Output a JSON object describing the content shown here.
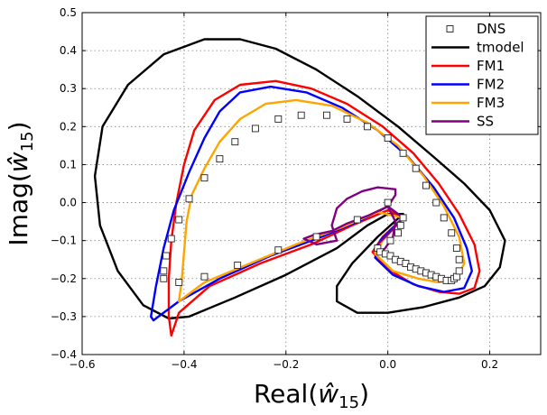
{
  "chart_data": {
    "type": "line",
    "xlabel_main": "Real(",
    "xlabel_symbol": "ŵ",
    "xlabel_sub": "15",
    "xlabel_close": ")",
    "ylabel_main": "Imag(",
    "ylabel_symbol": "ŵ",
    "ylabel_sub": "15",
    "ylabel_close": ")",
    "xlim": [
      -0.6,
      0.3
    ],
    "ylim": [
      -0.4,
      0.5
    ],
    "xticks": [
      -0.6,
      -0.4,
      -0.2,
      0.0,
      0.2
    ],
    "xtick_labels": [
      "−0.6",
      "−0.4",
      "−0.2",
      "0.0",
      "0.2"
    ],
    "yticks": [
      -0.4,
      -0.3,
      -0.2,
      -0.1,
      0.0,
      0.1,
      0.2,
      0.3,
      0.4,
      0.5
    ],
    "ytick_labels": [
      "−0.4",
      "−0.3",
      "−0.2",
      "−0.1",
      "0.0",
      "0.1",
      "0.2",
      "0.3",
      "0.4",
      "0.5"
    ],
    "grid": true,
    "legend_position": "top-right",
    "series": [
      {
        "name": "DNS",
        "kind": "markers",
        "color": "#222222",
        "points": [
          [
            0.03,
            -0.04
          ],
          [
            0.025,
            -0.06
          ],
          [
            0.02,
            -0.08
          ],
          [
            0.005,
            -0.1
          ],
          [
            -0.02,
            -0.12
          ],
          [
            -0.015,
            -0.13
          ],
          [
            -0.005,
            -0.135
          ],
          [
            0.005,
            -0.14
          ],
          [
            0.015,
            -0.15
          ],
          [
            0.025,
            -0.155
          ],
          [
            0.035,
            -0.16
          ],
          [
            0.045,
            -0.17
          ],
          [
            0.055,
            -0.175
          ],
          [
            0.065,
            -0.18
          ],
          [
            0.075,
            -0.185
          ],
          [
            0.085,
            -0.19
          ],
          [
            0.095,
            -0.195
          ],
          [
            0.105,
            -0.2
          ],
          [
            0.115,
            -0.205
          ],
          [
            0.125,
            -0.205
          ],
          [
            0.13,
            -0.2
          ],
          [
            0.135,
            -0.195
          ],
          [
            0.14,
            -0.18
          ],
          [
            0.14,
            -0.15
          ],
          [
            0.135,
            -0.12
          ],
          [
            0.125,
            -0.08
          ],
          [
            0.11,
            -0.04
          ],
          [
            0.095,
            0.0
          ],
          [
            0.075,
            0.045
          ],
          [
            0.055,
            0.09
          ],
          [
            0.03,
            0.13
          ],
          [
            0.0,
            0.17
          ],
          [
            -0.04,
            0.2
          ],
          [
            -0.08,
            0.22
          ],
          [
            -0.12,
            0.23
          ],
          [
            -0.17,
            0.23
          ],
          [
            -0.215,
            0.22
          ],
          [
            -0.26,
            0.195
          ],
          [
            -0.3,
            0.16
          ],
          [
            -0.33,
            0.115
          ],
          [
            -0.36,
            0.065
          ],
          [
            -0.39,
            0.01
          ],
          [
            -0.41,
            -0.045
          ],
          [
            -0.425,
            -0.095
          ],
          [
            -0.435,
            -0.14
          ],
          [
            -0.44,
            -0.18
          ],
          [
            -0.44,
            -0.2
          ],
          [
            -0.41,
            -0.21
          ],
          [
            -0.36,
            -0.195
          ],
          [
            -0.295,
            -0.165
          ],
          [
            -0.215,
            -0.125
          ],
          [
            -0.14,
            -0.09
          ],
          [
            -0.06,
            -0.045
          ],
          [
            0.0,
            0.0
          ]
        ]
      },
      {
        "name": "tmodel",
        "kind": "line",
        "color": "#000000",
        "points": [
          [
            0.03,
            -0.03
          ],
          [
            -0.02,
            -0.09
          ],
          [
            -0.07,
            -0.16
          ],
          [
            -0.1,
            -0.22
          ],
          [
            -0.1,
            -0.26
          ],
          [
            -0.06,
            -0.29
          ],
          [
            0.0,
            -0.29
          ],
          [
            0.07,
            -0.275
          ],
          [
            0.14,
            -0.25
          ],
          [
            0.19,
            -0.22
          ],
          [
            0.22,
            -0.17
          ],
          [
            0.23,
            -0.1
          ],
          [
            0.2,
            -0.02
          ],
          [
            0.15,
            0.05
          ],
          [
            0.09,
            0.12
          ],
          [
            0.02,
            0.2
          ],
          [
            -0.06,
            0.28
          ],
          [
            -0.14,
            0.35
          ],
          [
            -0.22,
            0.405
          ],
          [
            -0.29,
            0.43
          ],
          [
            -0.36,
            0.43
          ],
          [
            -0.44,
            0.39
          ],
          [
            -0.51,
            0.31
          ],
          [
            -0.56,
            0.2
          ],
          [
            -0.575,
            0.07
          ],
          [
            -0.565,
            -0.06
          ],
          [
            -0.53,
            -0.18
          ],
          [
            -0.48,
            -0.27
          ],
          [
            -0.43,
            -0.305
          ],
          [
            -0.39,
            -0.3
          ],
          [
            -0.3,
            -0.25
          ],
          [
            -0.2,
            -0.19
          ],
          [
            -0.1,
            -0.12
          ],
          [
            -0.04,
            -0.06
          ],
          [
            0.0,
            -0.03
          ],
          [
            0.03,
            -0.03
          ]
        ]
      },
      {
        "name": "FM1",
        "kind": "line",
        "color": "#ff0000",
        "points": [
          [
            0.03,
            -0.04
          ],
          [
            -0.01,
            -0.09
          ],
          [
            -0.03,
            -0.13
          ],
          [
            0.0,
            -0.175
          ],
          [
            0.05,
            -0.215
          ],
          [
            0.1,
            -0.235
          ],
          [
            0.14,
            -0.24
          ],
          [
            0.17,
            -0.225
          ],
          [
            0.18,
            -0.18
          ],
          [
            0.17,
            -0.11
          ],
          [
            0.14,
            -0.03
          ],
          [
            0.1,
            0.05
          ],
          [
            0.05,
            0.13
          ],
          [
            -0.01,
            0.2
          ],
          [
            -0.08,
            0.26
          ],
          [
            -0.15,
            0.3
          ],
          [
            -0.22,
            0.32
          ],
          [
            -0.29,
            0.31
          ],
          [
            -0.34,
            0.27
          ],
          [
            -0.38,
            0.19
          ],
          [
            -0.4,
            0.1
          ],
          [
            -0.415,
            0.0
          ],
          [
            -0.425,
            -0.1
          ],
          [
            -0.43,
            -0.2
          ],
          [
            -0.43,
            -0.3
          ],
          [
            -0.425,
            -0.35
          ],
          [
            -0.41,
            -0.29
          ],
          [
            -0.35,
            -0.22
          ],
          [
            -0.25,
            -0.16
          ],
          [
            -0.15,
            -0.11
          ],
          [
            -0.07,
            -0.06
          ],
          [
            0.0,
            -0.02
          ],
          [
            0.03,
            -0.04
          ]
        ]
      },
      {
        "name": "FM2",
        "kind": "line",
        "color": "#0000ff",
        "points": [
          [
            0.03,
            -0.04
          ],
          [
            -0.015,
            -0.1
          ],
          [
            -0.025,
            -0.145
          ],
          [
            0.01,
            -0.19
          ],
          [
            0.06,
            -0.22
          ],
          [
            0.11,
            -0.235
          ],
          [
            0.15,
            -0.225
          ],
          [
            0.165,
            -0.18
          ],
          [
            0.155,
            -0.12
          ],
          [
            0.13,
            -0.04
          ],
          [
            0.09,
            0.04
          ],
          [
            0.04,
            0.12
          ],
          [
            -0.02,
            0.19
          ],
          [
            -0.09,
            0.25
          ],
          [
            -0.16,
            0.29
          ],
          [
            -0.23,
            0.305
          ],
          [
            -0.29,
            0.29
          ],
          [
            -0.33,
            0.24
          ],
          [
            -0.36,
            0.17
          ],
          [
            -0.39,
            0.08
          ],
          [
            -0.42,
            -0.02
          ],
          [
            -0.44,
            -0.12
          ],
          [
            -0.455,
            -0.22
          ],
          [
            -0.465,
            -0.3
          ],
          [
            -0.46,
            -0.31
          ],
          [
            -0.41,
            -0.26
          ],
          [
            -0.33,
            -0.2
          ],
          [
            -0.23,
            -0.14
          ],
          [
            -0.13,
            -0.09
          ],
          [
            -0.05,
            -0.045
          ],
          [
            0.0,
            -0.01
          ],
          [
            0.03,
            -0.04
          ]
        ]
      },
      {
        "name": "FM3",
        "kind": "line",
        "color": "#ffa500",
        "points": [
          [
            0.03,
            -0.04
          ],
          [
            -0.01,
            -0.1
          ],
          [
            -0.025,
            -0.135
          ],
          [
            0.01,
            -0.18
          ],
          [
            0.06,
            -0.2
          ],
          [
            0.1,
            -0.21
          ],
          [
            0.135,
            -0.2
          ],
          [
            0.15,
            -0.16
          ],
          [
            0.14,
            -0.09
          ],
          [
            0.11,
            -0.01
          ],
          [
            0.07,
            0.07
          ],
          [
            0.02,
            0.15
          ],
          [
            -0.04,
            0.21
          ],
          [
            -0.11,
            0.255
          ],
          [
            -0.18,
            0.27
          ],
          [
            -0.24,
            0.26
          ],
          [
            -0.29,
            0.22
          ],
          [
            -0.33,
            0.16
          ],
          [
            -0.36,
            0.09
          ],
          [
            -0.385,
            0.02
          ],
          [
            -0.395,
            -0.05
          ],
          [
            -0.4,
            -0.13
          ],
          [
            -0.405,
            -0.21
          ],
          [
            -0.41,
            -0.26
          ],
          [
            -0.36,
            -0.21
          ],
          [
            -0.27,
            -0.16
          ],
          [
            -0.18,
            -0.11
          ],
          [
            -0.09,
            -0.065
          ],
          [
            -0.02,
            -0.025
          ],
          [
            0.03,
            -0.04
          ]
        ]
      },
      {
        "name": "SS",
        "kind": "line",
        "color": "#800080",
        "points": [
          [
            0.03,
            -0.04
          ],
          [
            0.01,
            -0.07
          ],
          [
            -0.005,
            -0.09
          ],
          [
            -0.02,
            -0.11
          ],
          [
            -0.015,
            -0.13
          ],
          [
            -0.005,
            -0.12
          ],
          [
            0.01,
            -0.09
          ],
          [
            0.015,
            -0.05
          ],
          [
            0.0,
            -0.01
          ],
          [
            0.015,
            0.02
          ],
          [
            0.015,
            0.035
          ],
          [
            -0.02,
            0.04
          ],
          [
            -0.05,
            0.03
          ],
          [
            -0.08,
            0.01
          ],
          [
            -0.1,
            -0.015
          ],
          [
            -0.11,
            -0.06
          ],
          [
            -0.1,
            -0.1
          ],
          [
            -0.14,
            -0.11
          ],
          [
            -0.165,
            -0.095
          ],
          [
            -0.145,
            -0.085
          ],
          [
            -0.11,
            -0.075
          ],
          [
            -0.08,
            -0.055
          ],
          [
            -0.04,
            -0.035
          ],
          [
            0.0,
            -0.01
          ],
          [
            0.03,
            -0.04
          ]
        ]
      }
    ]
  }
}
